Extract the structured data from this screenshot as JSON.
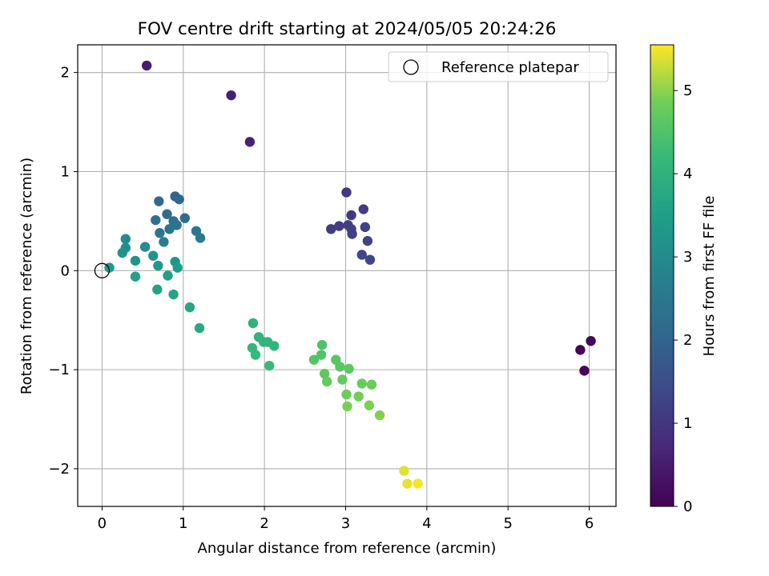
{
  "chart_data": {
    "type": "scatter",
    "title": "FOV centre drift starting at 2024/05/05 20:24:26",
    "xlabel": "Angular distance from reference (arcmin)",
    "ylabel": "Rotation from reference (arcmin)",
    "xlim": [
      -0.3,
      6.33
    ],
    "ylim": [
      -2.38,
      2.28
    ],
    "xticks": [
      0,
      1,
      2,
      3,
      4,
      5,
      6
    ],
    "yticks": [
      -2,
      -1,
      0,
      1,
      2
    ],
    "xtick_labels": [
      "0",
      "1",
      "2",
      "3",
      "4",
      "5",
      "6"
    ],
    "ytick_labels": [
      "−2",
      "−1",
      "0",
      "1",
      "2"
    ],
    "grid": true,
    "colormap": "viridis",
    "colorbar": {
      "label": "Hours from first FF file",
      "range": [
        0,
        5.55
      ],
      "ticks": [
        0,
        1,
        2,
        3,
        4,
        5
      ],
      "tick_labels": [
        "0",
        "1",
        "2",
        "3",
        "4",
        "5"
      ]
    },
    "legend": {
      "position": "top-right",
      "entries": [
        {
          "label": "Reference platepar",
          "marker": "open-circle"
        }
      ]
    },
    "reference_point": {
      "x": 0,
      "y": 0
    },
    "points": [
      {
        "x": 5.89,
        "y": -0.8,
        "c": 0.03
      },
      {
        "x": 5.94,
        "y": -1.01,
        "c": 0.08
      },
      {
        "x": 6.02,
        "y": -0.71,
        "c": 0.13
      },
      {
        "x": 0.55,
        "y": 2.07,
        "c": 0.5
      },
      {
        "x": 1.59,
        "y": 1.77,
        "c": 0.55
      },
      {
        "x": 1.82,
        "y": 1.3,
        "c": 0.6
      },
      {
        "x": 3.01,
        "y": 0.79,
        "c": 1.0
      },
      {
        "x": 3.07,
        "y": 0.56,
        "c": 1.04
      },
      {
        "x": 3.22,
        "y": 0.62,
        "c": 1.07
      },
      {
        "x": 2.82,
        "y": 0.42,
        "c": 1.1
      },
      {
        "x": 2.92,
        "y": 0.45,
        "c": 1.13
      },
      {
        "x": 3.03,
        "y": 0.46,
        "c": 1.16
      },
      {
        "x": 3.07,
        "y": 0.42,
        "c": 1.19
      },
      {
        "x": 3.08,
        "y": 0.37,
        "c": 1.22
      },
      {
        "x": 3.24,
        "y": 0.44,
        "c": 1.25
      },
      {
        "x": 3.27,
        "y": 0.3,
        "c": 1.28
      },
      {
        "x": 3.2,
        "y": 0.16,
        "c": 1.31
      },
      {
        "x": 3.3,
        "y": 0.11,
        "c": 1.34
      },
      {
        "x": 0.9,
        "y": 0.75,
        "c": 2.0
      },
      {
        "x": 0.95,
        "y": 0.72,
        "c": 2.05
      },
      {
        "x": 0.7,
        "y": 0.7,
        "c": 2.1
      },
      {
        "x": 0.8,
        "y": 0.57,
        "c": 2.15
      },
      {
        "x": 1.02,
        "y": 0.53,
        "c": 2.2
      },
      {
        "x": 0.88,
        "y": 0.5,
        "c": 2.25
      },
      {
        "x": 0.66,
        "y": 0.51,
        "c": 2.3
      },
      {
        "x": 0.92,
        "y": 0.46,
        "c": 2.35
      },
      {
        "x": 0.83,
        "y": 0.42,
        "c": 2.4
      },
      {
        "x": 0.71,
        "y": 0.38,
        "c": 2.45
      },
      {
        "x": 1.16,
        "y": 0.4,
        "c": 2.5
      },
      {
        "x": 1.21,
        "y": 0.33,
        "c": 2.55
      },
      {
        "x": 0.76,
        "y": 0.29,
        "c": 2.6
      },
      {
        "x": 0.29,
        "y": 0.32,
        "c": 3.0
      },
      {
        "x": 0.53,
        "y": 0.24,
        "c": 3.05
      },
      {
        "x": 0.29,
        "y": 0.23,
        "c": 3.1
      },
      {
        "x": 0.25,
        "y": 0.18,
        "c": 3.15
      },
      {
        "x": 0.63,
        "y": 0.15,
        "c": 3.2
      },
      {
        "x": 0.41,
        "y": 0.1,
        "c": 3.25
      },
      {
        "x": 0.9,
        "y": 0.09,
        "c": 3.3
      },
      {
        "x": 0.69,
        "y": 0.05,
        "c": 3.35
      },
      {
        "x": 0.09,
        "y": 0.03,
        "c": 3.4
      },
      {
        "x": 0.93,
        "y": 0.03,
        "c": 3.45
      },
      {
        "x": 0.81,
        "y": -0.05,
        "c": 3.5
      },
      {
        "x": 0.41,
        "y": -0.06,
        "c": 3.55
      },
      {
        "x": 0.68,
        "y": -0.19,
        "c": 3.6
      },
      {
        "x": 0.88,
        "y": -0.24,
        "c": 3.65
      },
      {
        "x": 1.08,
        "y": -0.37,
        "c": 3.7
      },
      {
        "x": 1.2,
        "y": -0.58,
        "c": 3.75
      },
      {
        "x": 1.86,
        "y": -0.53,
        "c": 4.0
      },
      {
        "x": 1.93,
        "y": -0.67,
        "c": 4.03
      },
      {
        "x": 1.99,
        "y": -0.72,
        "c": 4.06
      },
      {
        "x": 2.04,
        "y": -0.72,
        "c": 4.09
      },
      {
        "x": 2.12,
        "y": -0.76,
        "c": 4.12
      },
      {
        "x": 1.85,
        "y": -0.78,
        "c": 4.15
      },
      {
        "x": 1.89,
        "y": -0.85,
        "c": 4.18
      },
      {
        "x": 2.06,
        "y": -0.96,
        "c": 4.21
      },
      {
        "x": 2.71,
        "y": -0.75,
        "c": 4.5
      },
      {
        "x": 2.7,
        "y": -0.85,
        "c": 4.53
      },
      {
        "x": 2.61,
        "y": -0.9,
        "c": 4.56
      },
      {
        "x": 2.88,
        "y": -0.9,
        "c": 4.59
      },
      {
        "x": 2.93,
        "y": -0.97,
        "c": 4.62
      },
      {
        "x": 3.04,
        "y": -0.99,
        "c": 4.65
      },
      {
        "x": 2.74,
        "y": -1.04,
        "c": 4.68
      },
      {
        "x": 2.96,
        "y": -1.1,
        "c": 4.71
      },
      {
        "x": 2.77,
        "y": -1.12,
        "c": 4.74
      },
      {
        "x": 3.2,
        "y": -1.14,
        "c": 4.77
      },
      {
        "x": 3.32,
        "y": -1.15,
        "c": 4.8
      },
      {
        "x": 3.01,
        "y": -1.25,
        "c": 4.83
      },
      {
        "x": 3.16,
        "y": -1.27,
        "c": 4.86
      },
      {
        "x": 3.02,
        "y": -1.37,
        "c": 4.89
      },
      {
        "x": 3.29,
        "y": -1.36,
        "c": 4.92
      },
      {
        "x": 3.42,
        "y": -1.46,
        "c": 4.95
      },
      {
        "x": 3.72,
        "y": -2.02,
        "c": 5.4
      },
      {
        "x": 3.76,
        "y": -2.15,
        "c": 5.45
      },
      {
        "x": 3.89,
        "y": -2.15,
        "c": 5.5
      }
    ]
  }
}
